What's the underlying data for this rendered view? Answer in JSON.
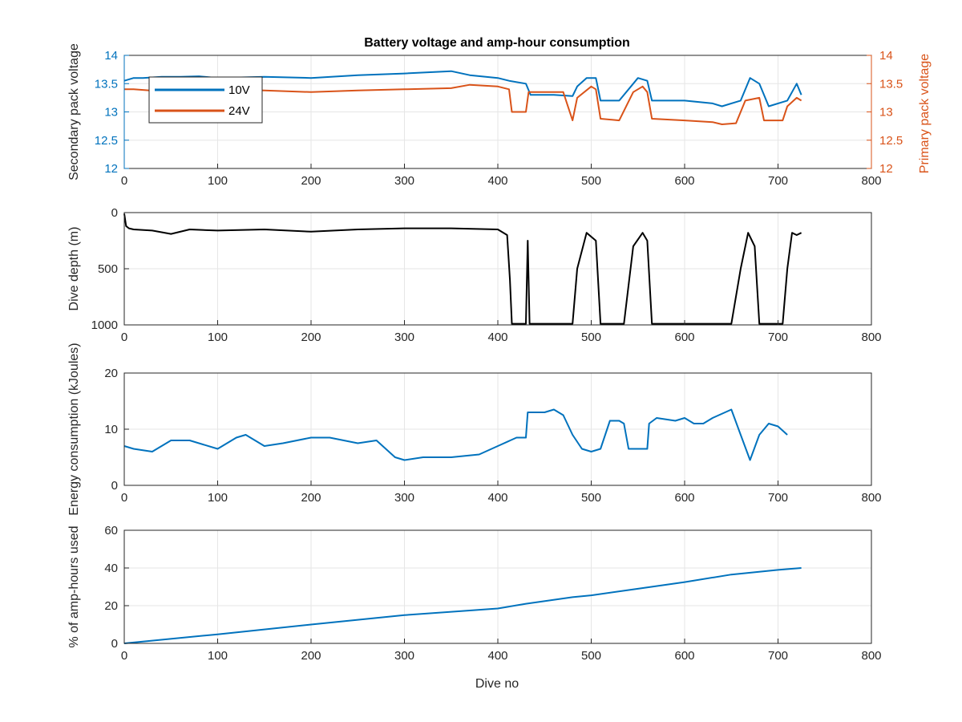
{
  "chart_data": [
    {
      "type": "line",
      "title": "Battery voltage and amp-hour consumption",
      "xlabel": "",
      "ylabel_left": "Secondary pack voltage",
      "ylabel_right": "Primary pack voltage",
      "xlim": [
        0,
        800
      ],
      "xticks": [
        0,
        100,
        200,
        300,
        400,
        500,
        600,
        700,
        800
      ],
      "ylim_left": [
        12,
        14
      ],
      "yticks_left": [
        12,
        12.5,
        13,
        13.5,
        14
      ],
      "ylim_right": [
        12,
        14
      ],
      "yticks_right": [
        12,
        12.5,
        13,
        13.5,
        14
      ],
      "grid": true,
      "legend": "top-left",
      "series": [
        {
          "name": "10V",
          "color": "#0072BD",
          "x": [
            0,
            10,
            20,
            40,
            60,
            80,
            100,
            150,
            200,
            250,
            300,
            350,
            370,
            400,
            412,
            430,
            435,
            460,
            480,
            485,
            495,
            505,
            510,
            530,
            545,
            550,
            560,
            565,
            580,
            600,
            630,
            640,
            660,
            670,
            680,
            690,
            710,
            720,
            725
          ],
          "y": [
            13.55,
            13.6,
            13.6,
            13.62,
            13.62,
            13.63,
            13.6,
            13.62,
            13.6,
            13.65,
            13.68,
            13.72,
            13.65,
            13.6,
            13.55,
            13.5,
            13.3,
            13.3,
            13.28,
            13.45,
            13.6,
            13.6,
            13.2,
            13.2,
            13.5,
            13.6,
            13.55,
            13.2,
            13.2,
            13.2,
            13.15,
            13.1,
            13.2,
            13.6,
            13.5,
            13.1,
            13.2,
            13.5,
            13.3
          ]
        },
        {
          "name": "24V",
          "color": "#D95319",
          "x": [
            0,
            10,
            50,
            100,
            150,
            200,
            250,
            300,
            350,
            370,
            400,
            412,
            415,
            430,
            433,
            470,
            480,
            485,
            500,
            505,
            510,
            530,
            545,
            555,
            560,
            565,
            600,
            630,
            640,
            655,
            665,
            680,
            685,
            705,
            710,
            720,
            725
          ],
          "y": [
            13.4,
            13.4,
            13.35,
            13.4,
            13.38,
            13.35,
            13.38,
            13.4,
            13.42,
            13.48,
            13.45,
            13.4,
            13.0,
            13.0,
            13.35,
            13.35,
            12.85,
            13.25,
            13.45,
            13.4,
            12.88,
            12.85,
            13.35,
            13.45,
            13.35,
            12.88,
            12.85,
            12.82,
            12.78,
            12.8,
            13.2,
            13.25,
            12.85,
            12.85,
            13.1,
            13.25,
            13.2
          ]
        }
      ]
    },
    {
      "type": "line",
      "xlabel": "",
      "ylabel": "Dive depth (m)",
      "xlim": [
        0,
        800
      ],
      "xticks": [
        0,
        100,
        200,
        300,
        400,
        500,
        600,
        700,
        800
      ],
      "ylim": [
        0,
        1000
      ],
      "y_reversed": true,
      "yticks": [
        0,
        500,
        1000
      ],
      "grid": true,
      "series": [
        {
          "color": "#000000",
          "x": [
            0,
            2,
            5,
            10,
            30,
            50,
            70,
            100,
            150,
            200,
            250,
            300,
            350,
            400,
            410,
            413,
            415,
            430,
            432,
            434,
            436,
            450,
            480,
            485,
            495,
            505,
            510,
            535,
            545,
            555,
            560,
            565,
            600,
            650,
            660,
            668,
            675,
            680,
            705,
            710,
            715,
            720,
            725
          ],
          "y": [
            10,
            120,
            140,
            150,
            160,
            190,
            150,
            160,
            150,
            170,
            150,
            140,
            140,
            150,
            200,
            600,
            990,
            990,
            250,
            990,
            990,
            990,
            990,
            500,
            180,
            250,
            990,
            990,
            300,
            180,
            250,
            990,
            990,
            990,
            500,
            180,
            300,
            990,
            990,
            500,
            180,
            200,
            180
          ]
        }
      ]
    },
    {
      "type": "line",
      "xlabel": "",
      "ylabel": "Energy consumption (kJoules)",
      "xlim": [
        0,
        800
      ],
      "xticks": [
        0,
        100,
        200,
        300,
        400,
        500,
        600,
        700,
        800
      ],
      "ylim": [
        0,
        20
      ],
      "yticks": [
        0,
        10,
        20
      ],
      "grid": true,
      "series": [
        {
          "color": "#0072BD",
          "x": [
            0,
            10,
            30,
            50,
            70,
            100,
            120,
            130,
            150,
            170,
            200,
            220,
            250,
            270,
            290,
            300,
            320,
            350,
            380,
            400,
            420,
            430,
            432,
            450,
            460,
            470,
            480,
            490,
            500,
            510,
            520,
            530,
            535,
            540,
            555,
            560,
            562,
            570,
            590,
            600,
            610,
            620,
            630,
            650,
            660,
            670,
            680,
            690,
            700,
            710
          ],
          "y": [
            7,
            6.5,
            6,
            8,
            8,
            6.5,
            8.5,
            9,
            7,
            7.5,
            8.5,
            8.5,
            7.5,
            8,
            5,
            4.5,
            5,
            5,
            5.5,
            7,
            8.5,
            8.5,
            13,
            13,
            13.5,
            12.5,
            9,
            6.5,
            6,
            6.5,
            11.5,
            11.5,
            11,
            6.5,
            6.5,
            6.5,
            11,
            12,
            11.5,
            12,
            11,
            11,
            12,
            13.5,
            9,
            4.5,
            9,
            11,
            10.5,
            9
          ]
        }
      ]
    },
    {
      "type": "line",
      "xlabel": "Dive no",
      "ylabel": "% of amp-hours used",
      "xlim": [
        0,
        800
      ],
      "xticks": [
        0,
        100,
        200,
        300,
        400,
        500,
        600,
        700,
        800
      ],
      "ylim": [
        0,
        60
      ],
      "yticks": [
        0,
        20,
        40,
        60
      ],
      "grid": true,
      "series": [
        {
          "color": "#0072BD",
          "x": [
            0,
            100,
            200,
            300,
            400,
            430,
            480,
            500,
            550,
            600,
            650,
            700,
            725
          ],
          "y": [
            0,
            4.8,
            10,
            15,
            18.5,
            21,
            24.5,
            25.5,
            29,
            32.5,
            36.5,
            39,
            40
          ]
        }
      ]
    }
  ]
}
